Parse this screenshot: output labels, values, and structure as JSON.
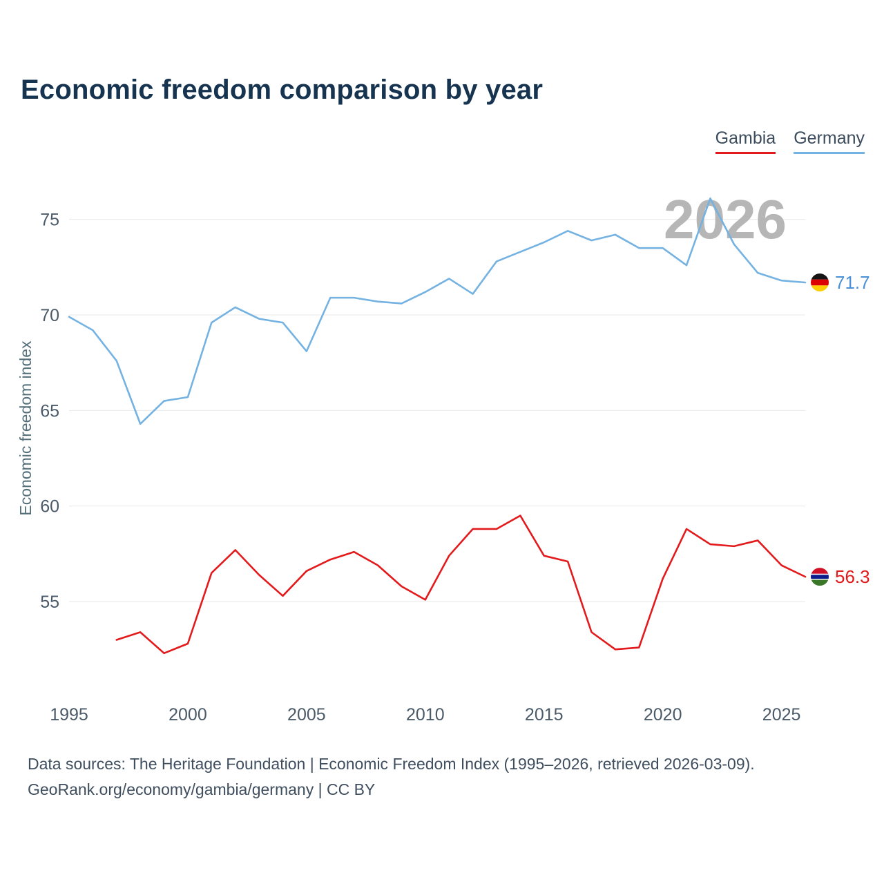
{
  "title": "Economic freedom comparison by year",
  "legend": [
    {
      "label": "Gambia",
      "color": "#e31a1c"
    },
    {
      "label": "Germany",
      "color": "#74b2e2"
    }
  ],
  "footer": {
    "line1": "Data sources: The Heritage Foundation | Economic Freedom Index (1995–2026, retrieved 2026-03-09).",
    "line2": "GeoRank.org/economy/gambia/germany | CC BY"
  },
  "chart_data": {
    "type": "line",
    "title": "Economic freedom comparison by year",
    "xlabel": "",
    "ylabel": "Economic freedom index",
    "watermark": "2026",
    "grid": "horizontal",
    "legend_position": "top-right",
    "x_ticks": [
      1995,
      2000,
      2005,
      2010,
      2015,
      2020,
      2025
    ],
    "y_ticks": [
      55,
      60,
      65,
      70,
      75
    ],
    "x_range": [
      1995,
      2026
    ],
    "y_range": [
      49.8,
      76.0
    ],
    "series": [
      {
        "name": "Germany",
        "color": "#74b2e2",
        "label_color": "#4a90d9",
        "end_label": "71.7",
        "flag_icon": "flag-germany-icon",
        "flag_stripes": [
          [
            "#151515",
            1
          ],
          [
            "#DD0000",
            1
          ],
          [
            "#FFCE00",
            1
          ]
        ],
        "years": [
          1995,
          1996,
          1997,
          1998,
          1999,
          2000,
          2001,
          2002,
          2003,
          2004,
          2005,
          2006,
          2007,
          2008,
          2009,
          2010,
          2011,
          2012,
          2013,
          2014,
          2015,
          2016,
          2017,
          2018,
          2019,
          2020,
          2021,
          2022,
          2023,
          2024,
          2025,
          2026
        ],
        "values": [
          69.9,
          69.2,
          67.6,
          64.3,
          65.5,
          65.7,
          69.6,
          70.4,
          69.8,
          69.6,
          68.1,
          70.9,
          70.9,
          70.7,
          70.6,
          71.2,
          71.9,
          71.1,
          72.8,
          73.3,
          73.8,
          74.4,
          73.9,
          74.2,
          73.5,
          73.5,
          72.6,
          76.1,
          73.7,
          72.2,
          71.8,
          71.7
        ]
      },
      {
        "name": "Gambia",
        "color": "#e31a1c",
        "label_color": "#e31a1c",
        "end_label": "56.3",
        "flag_icon": "flag-gambia-icon",
        "flag_stripes": [
          [
            "#CE1126",
            6
          ],
          [
            "#ffffff",
            1
          ],
          [
            "#0C1C8C",
            4
          ],
          [
            "#ffffff",
            1
          ],
          [
            "#3A7728",
            6
          ]
        ],
        "years": [
          1997,
          1998,
          1999,
          2000,
          2001,
          2002,
          2003,
          2004,
          2005,
          2006,
          2007,
          2008,
          2009,
          2010,
          2011,
          2012,
          2013,
          2014,
          2015,
          2016,
          2017,
          2018,
          2019,
          2020,
          2021,
          2022,
          2023,
          2024,
          2025,
          2026
        ],
        "values": [
          53.0,
          53.4,
          52.3,
          52.8,
          56.5,
          57.7,
          56.4,
          55.3,
          56.6,
          57.2,
          57.6,
          56.9,
          55.8,
          55.1,
          57.4,
          58.8,
          58.8,
          59.5,
          57.4,
          57.1,
          53.4,
          52.5,
          52.6,
          56.2,
          58.8,
          58.0,
          57.9,
          58.2,
          56.9,
          56.3
        ]
      }
    ]
  }
}
